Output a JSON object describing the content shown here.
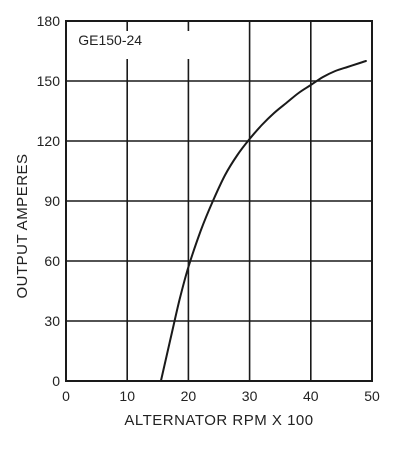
{
  "chart_data": {
    "type": "line",
    "title": "",
    "xlabel": "ALTERNATOR RPM X 100",
    "ylabel": "OUTPUT AMPERES",
    "xlim": [
      0,
      50
    ],
    "ylim": [
      0,
      180
    ],
    "x_ticks": [
      0,
      10,
      20,
      30,
      40,
      50
    ],
    "y_ticks": [
      0,
      30,
      60,
      90,
      120,
      150,
      180
    ],
    "grid": true,
    "legend": "none",
    "annotation": "GE150-24",
    "colors": {
      "line": "#1a1a1a",
      "grid": "#1a1a1a",
      "text": "#222222"
    },
    "series": [
      {
        "x": [
          15.5,
          17,
          18.5,
          20,
          22,
          24,
          26,
          28,
          30,
          32,
          34,
          36,
          38,
          40,
          42,
          44,
          46,
          48,
          49
        ],
        "y": [
          0,
          20,
          40,
          57,
          75,
          90,
          103,
          113,
          121,
          128,
          134,
          139,
          144,
          148,
          152,
          155,
          157,
          159,
          160
        ]
      }
    ]
  }
}
